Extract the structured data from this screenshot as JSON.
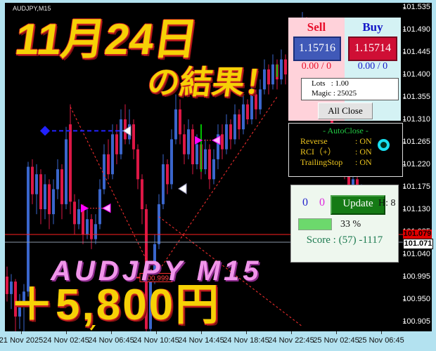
{
  "window": {
    "title": "AUDJPY,M15"
  },
  "overlay": {
    "headline": "11月24日",
    "result": "の結果！",
    "caption": "AUDJPY M15",
    "profit": "＋5,800円"
  },
  "trade_panel": {
    "sell_label": "Sell",
    "buy_label": "Buy",
    "sell_price": "1.15716",
    "buy_price": "1.15714",
    "sell_stats": "0.00 / 0",
    "buy_stats": "0.00 / 0",
    "lots_line": "Lots   : 1.00",
    "magic_line": "Magic : 25025",
    "all_close_label": "All Close"
  },
  "autoclose": {
    "title": "- AutoClose -",
    "rows": [
      {
        "label": "Reverse",
        "value": ": ON"
      },
      {
        "label": "RCI（+）",
        "value": ": ON"
      },
      {
        "label": "TrailingStop",
        "value": ": ON"
      }
    ]
  },
  "update_panel": {
    "count_blue": "0",
    "count_magenta": "0",
    "update_label": "Update",
    "hour_label": "H: 8",
    "progress_percent": 33,
    "progress_text": "33 %",
    "score_text": "Score : (57) -1117"
  },
  "price_axis": {
    "labels": [
      "101.535",
      "101.490",
      "101.445",
      "101.400",
      "101.355",
      "101.310",
      "101.265",
      "101.220",
      "101.175",
      "101.130",
      "101.085",
      "101.040",
      "100.995",
      "100.950",
      "100.905"
    ],
    "red_line_price": "101.079",
    "current_price": "101.071"
  },
  "time_axis": {
    "labels": [
      "21 Nov 2025",
      "24 Nov 02:45",
      "24 Nov 06:45",
      "24 Nov 10:45",
      "24 Nov 14:45",
      "24 Nov 18:45",
      "24 Nov 22:45",
      "25 Nov 02:45",
      "25 Nov 06:45"
    ]
  },
  "colors": {
    "bull": "#3a66cc",
    "bear": "#dd1745",
    "frame": "#b3e2f0",
    "red_line": "#ff2020",
    "current_line": "#8a98a8",
    "trade_line": "#ff3030",
    "blue_object": "#2222ff",
    "green_object": "#00c000",
    "magenta_object": "#ff00ff"
  },
  "chart_data": {
    "type": "candlestick",
    "symbol": "AUDJPY",
    "timeframe": "M15",
    "price_top": 101.535,
    "price_step": 0.045,
    "red_hline": 101.079,
    "current_hline": 101.071,
    "candles": [
      [
        100.995,
        101.015,
        100.945,
        100.96
      ],
      [
        100.96,
        101.0,
        100.93,
        100.985
      ],
      [
        100.985,
        100.99,
        100.885,
        100.915
      ],
      [
        100.915,
        100.96,
        100.89,
        100.945
      ],
      [
        100.945,
        100.98,
        100.885,
        100.965
      ],
      [
        100.965,
        101.225,
        100.955,
        101.215
      ],
      [
        101.215,
        101.23,
        101.14,
        101.16
      ],
      [
        101.16,
        101.22,
        101.12,
        101.2
      ],
      [
        101.2,
        101.21,
        101.1,
        101.13
      ],
      [
        101.13,
        101.2,
        101.11,
        101.18
      ],
      [
        101.18,
        101.19,
        101.09,
        101.12
      ],
      [
        101.12,
        101.19,
        101.1,
        101.17
      ],
      [
        101.17,
        101.23,
        101.15,
        101.21
      ],
      [
        101.21,
        101.22,
        101.11,
        101.14
      ],
      [
        101.14,
        101.295,
        101.13,
        101.27
      ],
      [
        101.3,
        101.34,
        101.12,
        101.145
      ],
      [
        101.145,
        101.16,
        101.08,
        101.1
      ],
      [
        101.1,
        101.15,
        101.09,
        101.13
      ],
      [
        101.13,
        101.14,
        101.06,
        101.08
      ],
      [
        101.08,
        101.13,
        101.07,
        101.11
      ],
      [
        101.11,
        101.12,
        101.05,
        101.07
      ],
      [
        101.07,
        101.12,
        101.06,
        101.1
      ],
      [
        101.1,
        101.19,
        101.09,
        101.17
      ],
      [
        101.17,
        101.26,
        101.16,
        101.24
      ],
      [
        101.24,
        101.27,
        101.19,
        101.2
      ],
      [
        101.2,
        101.3,
        101.19,
        101.28
      ],
      [
        101.28,
        101.3,
        101.22,
        101.24
      ],
      [
        101.24,
        101.33,
        101.23,
        101.31
      ],
      [
        101.31,
        101.34,
        101.26,
        101.27
      ],
      [
        101.27,
        101.33,
        101.26,
        101.3
      ],
      [
        101.3,
        101.31,
        101.23,
        101.25
      ],
      [
        101.25,
        101.26,
        101.17,
        101.19
      ],
      [
        101.19,
        101.2,
        101.1,
        101.13
      ],
      [
        101.13,
        101.14,
        100.885,
        100.89
      ],
      [
        100.89,
        101.01,
        100.88,
        100.995
      ],
      [
        100.995,
        101.08,
        100.98,
        101.06
      ],
      [
        101.06,
        101.16,
        101.05,
        101.14
      ],
      [
        101.14,
        101.24,
        101.13,
        101.22
      ],
      [
        101.22,
        101.23,
        101.16,
        101.18
      ],
      [
        101.18,
        101.29,
        101.17,
        101.27
      ],
      [
        101.27,
        101.36,
        101.26,
        101.33
      ],
      [
        101.33,
        101.35,
        101.26,
        101.28
      ],
      [
        101.28,
        101.3,
        101.22,
        101.24
      ],
      [
        101.24,
        101.31,
        101.23,
        101.29
      ],
      [
        101.29,
        101.3,
        101.2,
        101.22
      ],
      [
        101.22,
        101.28,
        101.21,
        101.26
      ],
      [
        101.26,
        101.27,
        101.19,
        101.21
      ],
      [
        101.21,
        101.27,
        101.2,
        101.25
      ],
      [
        101.25,
        101.26,
        101.17,
        101.19
      ],
      [
        101.19,
        101.25,
        101.18,
        101.23
      ],
      [
        101.23,
        101.3,
        101.21,
        101.28
      ],
      [
        101.28,
        101.3,
        101.23,
        101.25
      ],
      [
        101.25,
        101.32,
        101.24,
        101.3
      ],
      [
        101.3,
        101.31,
        101.25,
        101.27
      ],
      [
        101.27,
        101.34,
        101.26,
        101.32
      ],
      [
        101.32,
        101.33,
        101.27,
        101.29
      ],
      [
        101.29,
        101.36,
        101.28,
        101.34
      ],
      [
        101.34,
        101.35,
        101.3,
        101.31
      ],
      [
        101.31,
        101.38,
        101.3,
        101.36
      ],
      [
        101.36,
        101.37,
        101.31,
        101.33
      ],
      [
        101.33,
        101.39,
        101.32,
        101.37
      ],
      [
        101.37,
        101.43,
        101.36,
        101.41
      ],
      [
        101.41,
        101.42,
        101.36,
        101.38
      ],
      [
        101.38,
        101.44,
        101.37,
        101.42
      ],
      [
        101.42,
        101.43,
        101.37,
        101.39
      ],
      [
        101.39,
        101.45,
        101.38,
        101.43
      ],
      [
        101.43,
        101.44,
        101.38,
        101.4
      ],
      [
        101.4,
        101.46,
        101.39,
        101.44
      ],
      [
        101.44,
        101.49,
        101.43,
        101.47
      ],
      [
        101.47,
        101.48,
        101.42,
        101.44
      ],
      [
        101.44,
        101.525,
        101.43,
        101.5
      ],
      [
        101.5,
        101.515,
        101.44,
        101.46
      ],
      [
        101.46,
        101.47,
        101.4,
        101.42
      ],
      [
        101.42,
        101.47,
        101.41,
        101.45
      ],
      [
        101.45,
        101.46,
        101.36,
        101.38
      ],
      [
        101.38,
        101.39,
        101.31,
        101.33
      ],
      [
        101.33,
        101.38,
        101.32,
        101.36
      ],
      [
        101.36,
        101.37,
        101.27,
        101.29
      ],
      [
        101.29,
        101.3,
        101.22,
        101.24
      ],
      [
        101.24,
        101.29,
        101.23,
        101.27
      ],
      [
        101.27,
        101.28,
        101.19,
        101.21
      ],
      [
        101.21,
        101.22,
        101.14,
        101.16
      ],
      [
        101.16,
        101.21,
        101.15,
        101.19
      ],
      [
        101.19,
        101.2,
        101.11,
        101.13
      ],
      [
        101.13,
        101.18,
        101.12,
        101.16
      ],
      [
        101.16,
        101.17,
        101.08,
        101.1
      ],
      [
        101.1,
        101.11,
        101.04,
        101.06
      ],
      [
        101.06,
        101.09,
        101.05,
        101.071
      ]
    ],
    "annotations": {
      "blue_dashed_line": {
        "from_i": 9,
        "to_i": 28,
        "price": 101.287
      },
      "white_triangle": {
        "i": 41,
        "price": 101.171
      },
      "green_lines": [
        {
          "i": 46,
          "from": 101.3,
          "to": 101.205
        },
        {
          "i": 64,
          "from": 101.42,
          "to": 101.395
        }
      ],
      "magenta_pairs": [
        {
          "from_i": 19,
          "to_i": 23,
          "price": 101.132
        },
        {
          "from_i": 46,
          "to_i": 49,
          "price": 101.268
        }
      ],
      "trade_lines": [
        {
          "x1_i": 15,
          "p1": 101.335,
          "x2_i": 35,
          "p2": 100.995
        },
        {
          "x1_i": 35,
          "p1": 100.995,
          "x2_i": 64,
          "p2": 101.355
        },
        {
          "x1_i": 36,
          "p1": 101.115,
          "x2_i": 70,
          "p2": 100.895
        }
      ],
      "price_flag": {
        "text": "100.999",
        "i": 35,
        "price": 100.993
      },
      "yellow_axis_marker_i": 20
    }
  }
}
